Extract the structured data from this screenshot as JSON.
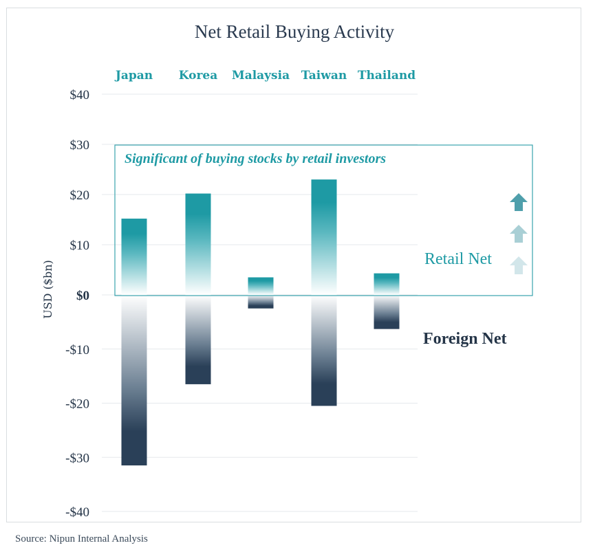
{
  "chart_data": {
    "type": "bar",
    "title": "Net Retail Buying Activity",
    "ylabel": "USD ($bn)",
    "xlabel": "",
    "categories": [
      "Japan",
      "Korea",
      "Malaysia",
      "Taiwan",
      "Thailand"
    ],
    "series": [
      {
        "name": "Retail Net",
        "values": [
          15.2,
          20.2,
          3.5,
          23.0,
          4.3
        ]
      },
      {
        "name": "Foreign Net",
        "values": [
          -31.5,
          -16.5,
          -2.5,
          -20.5,
          -6.3
        ]
      }
    ],
    "ylim": [
      -40,
      40
    ],
    "yticks": [
      {
        "value": 40,
        "label": "$40"
      },
      {
        "value": 30,
        "label": "$30"
      },
      {
        "value": 20,
        "label": "$20"
      },
      {
        "value": 10,
        "label": "$10"
      },
      {
        "value": 0,
        "label": "$0"
      },
      {
        "value": -10,
        "label": "-$10"
      },
      {
        "value": -20,
        "label": "-$20"
      },
      {
        "value": -30,
        "label": "-$30"
      },
      {
        "value": -40,
        "label": "-$40"
      }
    ],
    "grid": true,
    "legend_position": "right",
    "annotation": "Significant of buying stocks by retail investors",
    "colors": {
      "retail": "#1e9aa4",
      "foreign": "#243c55",
      "grid": "#e6e9ec",
      "annotation_box": "#3aa3ad"
    }
  },
  "source": "Source: Nipun Internal Analysis",
  "icons": [
    "arrow-up-icon",
    "arrow-up-icon",
    "arrow-up-icon"
  ]
}
